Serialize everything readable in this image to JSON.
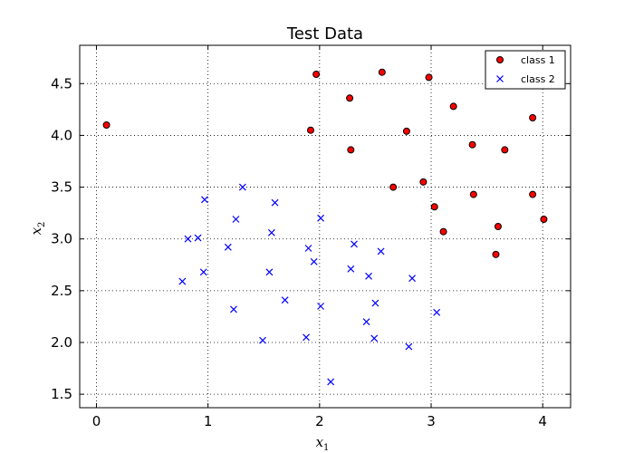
{
  "chart_data": {
    "type": "scatter",
    "title": "Test Data",
    "xlabel": "x",
    "xlabel_sub": "1",
    "ylabel": "x",
    "ylabel_sub": "2",
    "xlim": [
      -0.15,
      4.25
    ],
    "ylim": [
      1.37,
      4.87
    ],
    "xticks": [
      0,
      1,
      2,
      3,
      4
    ],
    "xtick_labels": [
      "0",
      "1",
      "2",
      "3",
      "4"
    ],
    "yticks": [
      1.5,
      2.0,
      2.5,
      3.0,
      3.5,
      4.0,
      4.5
    ],
    "ytick_labels": [
      "1.5",
      "2.0",
      "2.5",
      "3.0",
      "3.5",
      "4.0",
      "4.5"
    ],
    "grid": true,
    "legend_position": "top-right",
    "series": [
      {
        "name": "class 1",
        "marker": "circle",
        "color": "#ff0000",
        "edge_color": "#000000",
        "points": [
          [
            0.09,
            4.1
          ],
          [
            1.97,
            4.59
          ],
          [
            2.56,
            4.61
          ],
          [
            2.98,
            4.56
          ],
          [
            2.27,
            4.36
          ],
          [
            3.2,
            4.28
          ],
          [
            3.91,
            4.17
          ],
          [
            1.92,
            4.05
          ],
          [
            2.78,
            4.04
          ],
          [
            3.37,
            3.91
          ],
          [
            3.66,
            3.86
          ],
          [
            2.28,
            3.86
          ],
          [
            2.66,
            3.5
          ],
          [
            2.93,
            3.55
          ],
          [
            3.38,
            3.43
          ],
          [
            3.91,
            3.43
          ],
          [
            3.03,
            3.31
          ],
          [
            3.6,
            3.12
          ],
          [
            4.01,
            3.19
          ],
          [
            3.11,
            3.07
          ],
          [
            3.58,
            2.85
          ]
        ]
      },
      {
        "name": "class 2",
        "marker": "x",
        "color": "#0000ff",
        "points": [
          [
            1.31,
            3.5
          ],
          [
            0.97,
            3.38
          ],
          [
            1.6,
            3.35
          ],
          [
            1.25,
            3.19
          ],
          [
            2.01,
            3.2
          ],
          [
            0.82,
            3.0
          ],
          [
            0.91,
            3.01
          ],
          [
            1.57,
            3.06
          ],
          [
            1.18,
            2.92
          ],
          [
            1.9,
            2.91
          ],
          [
            2.31,
            2.95
          ],
          [
            2.55,
            2.88
          ],
          [
            1.95,
            2.78
          ],
          [
            2.28,
            2.71
          ],
          [
            0.96,
            2.68
          ],
          [
            1.55,
            2.68
          ],
          [
            2.44,
            2.64
          ],
          [
            2.83,
            2.62
          ],
          [
            0.77,
            2.59
          ],
          [
            1.69,
            2.41
          ],
          [
            2.5,
            2.38
          ],
          [
            2.01,
            2.35
          ],
          [
            1.23,
            2.32
          ],
          [
            3.05,
            2.29
          ],
          [
            2.42,
            2.2
          ],
          [
            1.88,
            2.05
          ],
          [
            2.49,
            2.04
          ],
          [
            1.49,
            2.02
          ],
          [
            2.8,
            1.96
          ],
          [
            2.1,
            1.62
          ]
        ]
      }
    ]
  }
}
